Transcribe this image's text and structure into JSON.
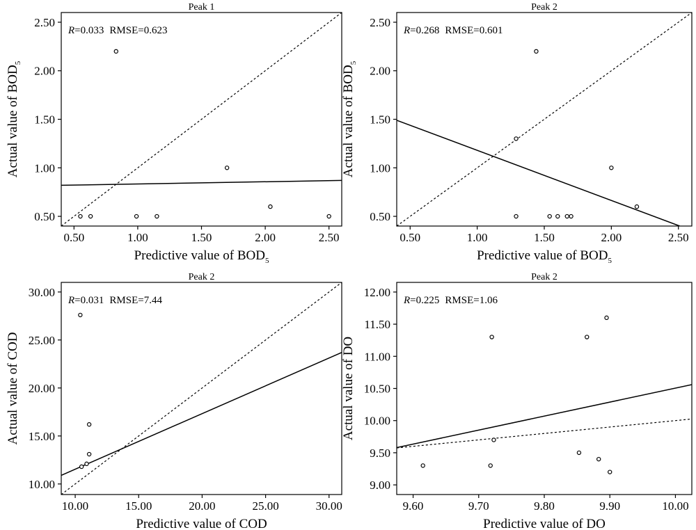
{
  "chart_data": [
    {
      "type": "scatter",
      "title": "Peak 1",
      "xlabel": "Predictive value of BOD",
      "xlabel_sub": "5",
      "ylabel": "Actual value of BOD",
      "ylabel_sub": "5",
      "r_label": "R",
      "r_value": "=0.033",
      "rmse_label": "RMSE=0.623",
      "xlim": [
        0.4,
        2.6
      ],
      "ylim": [
        0.4,
        2.6
      ],
      "xticks": [
        0.5,
        1.0,
        1.5,
        2.0,
        2.5
      ],
      "xtick_labels": [
        "0.50",
        "1.00",
        "1.50",
        "2.00",
        "2.50"
      ],
      "yticks": [
        0.5,
        1.0,
        1.5,
        2.0,
        2.5
      ],
      "ytick_labels": [
        "0.50",
        "1.00",
        "1.50",
        "2.00",
        "2.50"
      ],
      "points": [
        {
          "x": 0.55,
          "y": 0.5
        },
        {
          "x": 0.63,
          "y": 0.5
        },
        {
          "x": 0.83,
          "y": 2.2
        },
        {
          "x": 0.99,
          "y": 0.5
        },
        {
          "x": 1.15,
          "y": 0.5
        },
        {
          "x": 1.7,
          "y": 1.0
        },
        {
          "x": 2.04,
          "y": 0.6
        },
        {
          "x": 2.5,
          "y": 0.5
        }
      ],
      "fit_line": {
        "x": [
          0.4,
          2.6
        ],
        "y": [
          0.82,
          0.87
        ]
      },
      "identity_line": true
    },
    {
      "type": "scatter",
      "title": "Peak 2",
      "xlabel": "Predictive value of BOD",
      "xlabel_sub": "5",
      "ylabel": "Actual value of BOD",
      "ylabel_sub": "5",
      "r_label": "R",
      "r_value": "=0.268",
      "rmse_label": "RMSE=0.601",
      "xlim": [
        0.4,
        2.6
      ],
      "ylim": [
        0.4,
        2.6
      ],
      "xticks": [
        0.5,
        1.0,
        1.5,
        2.0,
        2.5
      ],
      "xtick_labels": [
        "0.50",
        "1.00",
        "1.50",
        "2.00",
        "2.50"
      ],
      "yticks": [
        0.5,
        1.0,
        1.5,
        2.0,
        2.5
      ],
      "ytick_labels": [
        "0.50",
        "1.00",
        "1.50",
        "2.00",
        "2.50"
      ],
      "points": [
        {
          "x": 1.29,
          "y": 0.5
        },
        {
          "x": 1.29,
          "y": 1.3
        },
        {
          "x": 1.44,
          "y": 2.2
        },
        {
          "x": 1.54,
          "y": 0.5
        },
        {
          "x": 1.6,
          "y": 0.5
        },
        {
          "x": 1.67,
          "y": 0.5
        },
        {
          "x": 1.7,
          "y": 0.5
        },
        {
          "x": 2.0,
          "y": 1.0
        },
        {
          "x": 2.19,
          "y": 0.6
        }
      ],
      "fit_line": {
        "x": [
          0.4,
          2.51
        ],
        "y": [
          1.49,
          0.4
        ]
      },
      "identity_line": true
    },
    {
      "type": "scatter",
      "title": "Peak 2",
      "xlabel": "Predictive value of COD",
      "xlabel_sub": "",
      "ylabel": "Actual value of COD",
      "ylabel_sub": "",
      "r_label": "R",
      "r_value": "=0.031",
      "rmse_label": "RMSE=7.44",
      "xlim": [
        8.9,
        31.0
      ],
      "ylim": [
        8.9,
        31.0
      ],
      "xticks": [
        10,
        15,
        20,
        25,
        30
      ],
      "xtick_labels": [
        "10.00",
        "15.00",
        "20.00",
        "25.00",
        "30.00"
      ],
      "yticks": [
        10,
        15,
        20,
        25,
        30
      ],
      "ytick_labels": [
        "10.00",
        "15.00",
        "20.00",
        "25.00",
        "30.00"
      ],
      "points": [
        {
          "x": 10.4,
          "y": 27.6
        },
        {
          "x": 10.5,
          "y": 11.8
        },
        {
          "x": 10.9,
          "y": 12.1
        },
        {
          "x": 11.1,
          "y": 16.2
        },
        {
          "x": 11.1,
          "y": 13.1
        }
      ],
      "fit_line": {
        "x": [
          8.9,
          31.0
        ],
        "y": [
          10.9,
          23.7
        ]
      },
      "identity_line": true
    },
    {
      "type": "scatter",
      "title": "Peak 2",
      "xlabel": "Predictive value of DO",
      "xlabel_sub": "",
      "ylabel": "Actual value of DO",
      "ylabel_sub": "",
      "r_label": "R",
      "r_value": "=0.225",
      "rmse_label": "RMSE=1.06",
      "xlim": [
        9.575,
        10.025
      ],
      "ylim": [
        8.85,
        12.15
      ],
      "xticks": [
        9.6,
        9.7,
        9.8,
        9.9,
        10.0
      ],
      "xtick_labels": [
        "9.60",
        "9.70",
        "9.80",
        "9.90",
        "10.00"
      ],
      "yticks": [
        9.0,
        9.5,
        10.0,
        10.5,
        11.0,
        11.5,
        12.0
      ],
      "ytick_labels": [
        "9.00",
        "9.50",
        "10.00",
        "10.50",
        "11.00",
        "11.50",
        "12.00"
      ],
      "points": [
        {
          "x": 9.615,
          "y": 9.3
        },
        {
          "x": 9.718,
          "y": 9.3
        },
        {
          "x": 9.72,
          "y": 11.3
        },
        {
          "x": 9.723,
          "y": 9.7
        },
        {
          "x": 9.853,
          "y": 9.5
        },
        {
          "x": 9.865,
          "y": 11.3
        },
        {
          "x": 9.883,
          "y": 9.4
        },
        {
          "x": 9.895,
          "y": 11.6
        },
        {
          "x": 9.9,
          "y": 9.2
        }
      ],
      "fit_line": {
        "x": [
          9.575,
          10.025
        ],
        "y": [
          9.58,
          10.56
        ]
      },
      "identity_line": true
    }
  ]
}
